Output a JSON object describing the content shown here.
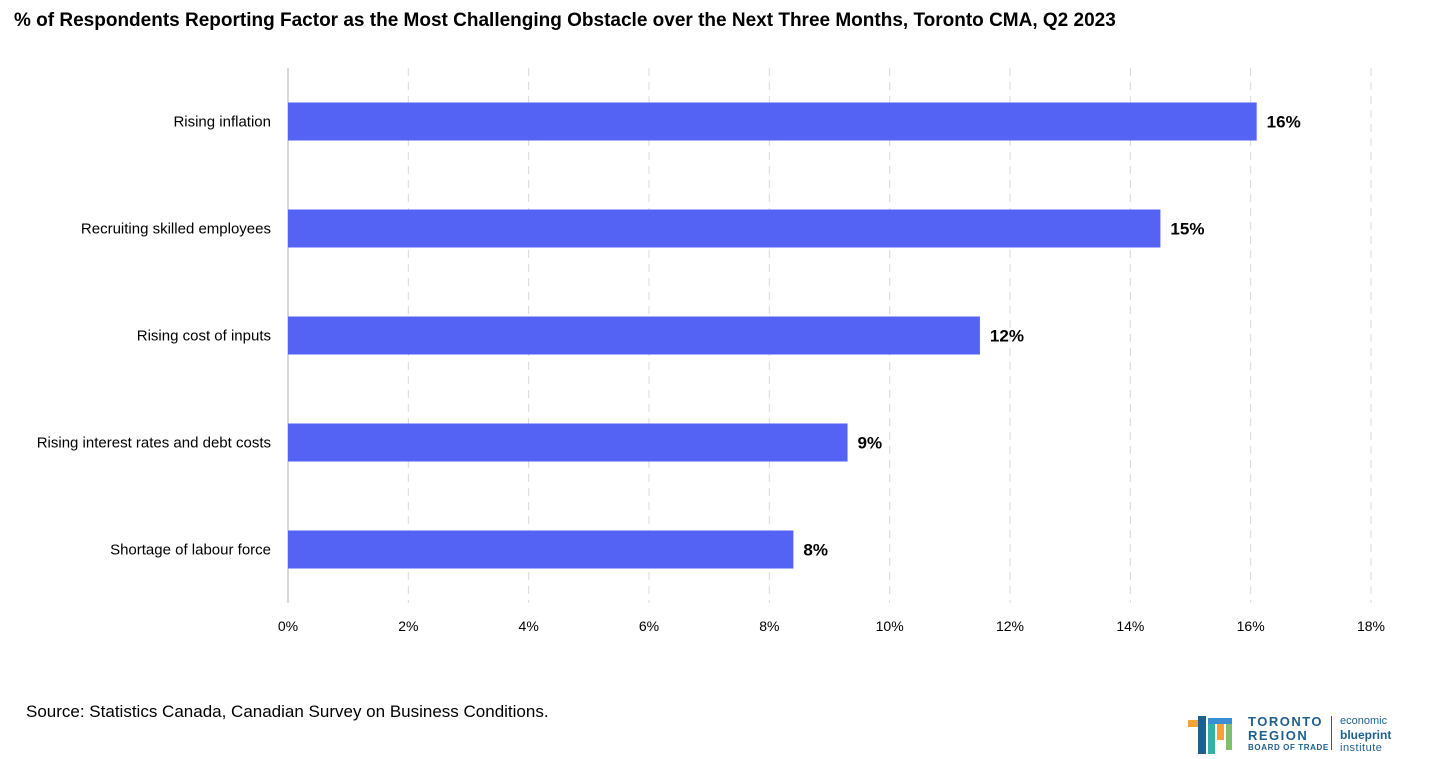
{
  "title": "% of Respondents Reporting Factor as the Most Challenging Obstacle over the Next Three Months, Toronto CMA, Q2 2023",
  "source": "Source: Statistics Canada, Canadian Survey on Business Conditions.",
  "logo": {
    "line1": "TORONTO",
    "line2": "REGION",
    "line3": "BOARD OF TRADE",
    "right1": "economic",
    "right2": "blueprint",
    "right3": "institute"
  },
  "chart_data": {
    "type": "bar",
    "orientation": "horizontal",
    "categories": [
      "Rising inflation",
      "Recruiting skilled employees",
      "Rising cost of inputs",
      "Rising interest rates and debt costs",
      "Shortage of labour force"
    ],
    "values": [
      16.1,
      14.5,
      11.5,
      9.3,
      8.4
    ],
    "data_labels": [
      "16%",
      "15%",
      "12%",
      "9%",
      "8%"
    ],
    "xlim": [
      0,
      18
    ],
    "xticks": [
      0,
      2,
      4,
      6,
      8,
      10,
      12,
      14,
      16,
      18
    ],
    "xtick_labels": [
      "0%",
      "2%",
      "4%",
      "6%",
      "8%",
      "10%",
      "12%",
      "14%",
      "16%",
      "18%"
    ],
    "bar_color": "#5563f5",
    "grid": "vertical dashed",
    "legend": "none"
  }
}
